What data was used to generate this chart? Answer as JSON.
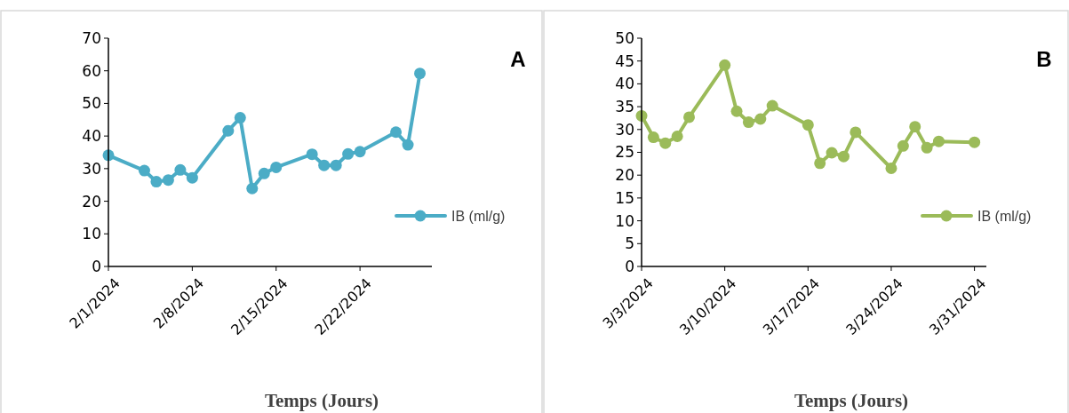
{
  "chart_data": [
    {
      "type": "line",
      "annotations": [
        "A"
      ],
      "xlabel": "Temps (Jours)",
      "x": [
        "2024-02-01",
        "2024-02-04",
        "2024-02-05",
        "2024-02-06",
        "2024-02-07",
        "2024-02-08",
        "2024-02-11",
        "2024-02-12",
        "2024-02-13",
        "2024-02-14",
        "2024-02-15",
        "2024-02-18",
        "2024-02-19",
        "2024-02-20",
        "2024-02-21",
        "2024-02-22",
        "2024-02-25",
        "2024-02-26",
        "2024-02-27"
      ],
      "series": [
        {
          "name": "IB (ml/g)",
          "color": "#4bacc6",
          "values": [
            34.1,
            29.4,
            26.0,
            26.5,
            29.6,
            27.2,
            41.6,
            45.6,
            23.9,
            28.5,
            30.4,
            34.4,
            31.0,
            31.0,
            34.5,
            35.2,
            41.2,
            37.3,
            59.2
          ]
        }
      ],
      "xlim": [
        "2024-02-01",
        "2024-02-28"
      ],
      "xticks": [
        {
          "value": "2024-02-01",
          "label": "2/1/2024"
        },
        {
          "value": "2024-02-08",
          "label": "2/8/2024"
        },
        {
          "value": "2024-02-15",
          "label": "2/15/2024"
        },
        {
          "value": "2024-02-22",
          "label": "2/22/2024"
        }
      ],
      "ylim": [
        0,
        70
      ],
      "yticks": [
        0,
        10,
        20,
        30,
        40,
        50,
        60,
        70
      ],
      "grid": false,
      "legend": "right",
      "marker": "circle",
      "line_style": "solid"
    },
    {
      "type": "line",
      "annotations": [
        "B"
      ],
      "xlabel": "Temps (Jours)",
      "x": [
        "2024-03-03",
        "2024-03-04",
        "2024-03-05",
        "2024-03-06",
        "2024-03-07",
        "2024-03-10",
        "2024-03-11",
        "2024-03-12",
        "2024-03-13",
        "2024-03-14",
        "2024-03-17",
        "2024-03-18",
        "2024-03-19",
        "2024-03-20",
        "2024-03-21",
        "2024-03-24",
        "2024-03-25",
        "2024-03-26",
        "2024-03-27",
        "2024-03-28",
        "2024-03-31"
      ],
      "series": [
        {
          "name": "IB (ml/g)",
          "color": "#9bbb59",
          "values": [
            33.0,
            28.3,
            27.0,
            28.5,
            32.7,
            44.1,
            34.0,
            31.6,
            32.3,
            35.2,
            31.0,
            22.6,
            24.9,
            24.1,
            29.4,
            21.5,
            26.4,
            30.6,
            26.0,
            27.4,
            27.2
          ]
        }
      ],
      "xlim": [
        "2024-03-03",
        "2024-04-01"
      ],
      "xticks": [
        {
          "value": "2024-03-03",
          "label": "3/3/2024"
        },
        {
          "value": "2024-03-10",
          "label": "3/10/2024"
        },
        {
          "value": "2024-03-17",
          "label": "3/17/2024"
        },
        {
          "value": "2024-03-24",
          "label": "3/24/2024"
        },
        {
          "value": "2024-03-31",
          "label": "3/31/2024"
        }
      ],
      "ylim": [
        0,
        50
      ],
      "yticks": [
        0,
        5,
        10,
        15,
        20,
        25,
        30,
        35,
        40,
        45,
        50
      ],
      "grid": false,
      "legend": "right",
      "marker": "circle",
      "line_style": "solid"
    }
  ]
}
